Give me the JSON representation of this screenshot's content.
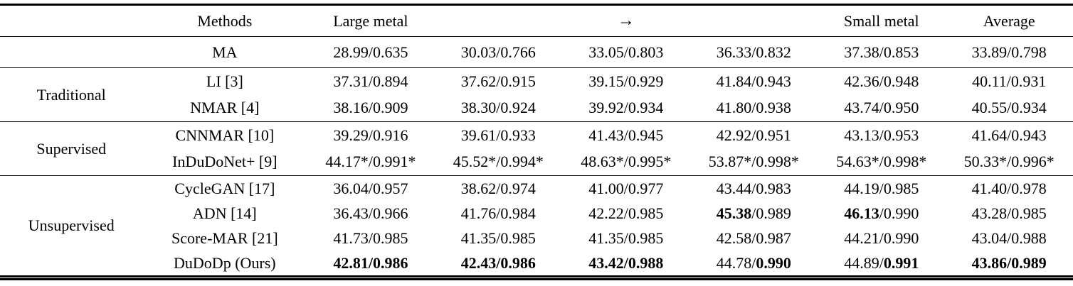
{
  "colors": {
    "text": "#000000",
    "background": "#ffffff",
    "rule": "#000000"
  },
  "table": {
    "columns": [
      "",
      "Methods",
      "Large metal",
      "",
      "→",
      "",
      "Small metal",
      "Average"
    ],
    "value_format": "PSNR/SSIM",
    "sections": [
      {
        "category": "",
        "rows": [
          {
            "method": "MA",
            "cells": [
              {
                "psnr": "28.99",
                "ssim": "0.635"
              },
              {
                "psnr": "30.03",
                "ssim": "0.766"
              },
              {
                "psnr": "33.05",
                "ssim": "0.803"
              },
              {
                "psnr": "36.33",
                "ssim": "0.832"
              },
              {
                "psnr": "37.38",
                "ssim": "0.853"
              },
              {
                "psnr": "33.89",
                "ssim": "0.798"
              }
            ]
          }
        ]
      },
      {
        "category": "Traditional",
        "rows": [
          {
            "method": "LI [3]",
            "cells": [
              {
                "psnr": "37.31",
                "ssim": "0.894"
              },
              {
                "psnr": "37.62",
                "ssim": "0.915"
              },
              {
                "psnr": "39.15",
                "ssim": "0.929"
              },
              {
                "psnr": "41.84",
                "ssim": "0.943"
              },
              {
                "psnr": "42.36",
                "ssim": "0.948"
              },
              {
                "psnr": "40.11",
                "ssim": "0.931"
              }
            ]
          },
          {
            "method": "NMAR [4]",
            "cells": [
              {
                "psnr": "38.16",
                "ssim": "0.909"
              },
              {
                "psnr": "38.30",
                "ssim": "0.924"
              },
              {
                "psnr": "39.92",
                "ssim": "0.934"
              },
              {
                "psnr": "41.80",
                "ssim": "0.938"
              },
              {
                "psnr": "43.74",
                "ssim": "0.950"
              },
              {
                "psnr": "40.55",
                "ssim": "0.934"
              }
            ]
          }
        ]
      },
      {
        "category": "Supervised",
        "rows": [
          {
            "method": "CNNMAR [10]",
            "cells": [
              {
                "psnr": "39.29",
                "ssim": "0.916"
              },
              {
                "psnr": "39.61",
                "ssim": "0.933"
              },
              {
                "psnr": "41.43",
                "ssim": "0.945"
              },
              {
                "psnr": "42.92",
                "ssim": "0.951"
              },
              {
                "psnr": "43.13",
                "ssim": "0.953"
              },
              {
                "psnr": "41.64",
                "ssim": "0.943"
              }
            ]
          },
          {
            "method": "InDuDoNet+ [9]",
            "cells": [
              {
                "psnr": "44.17*",
                "ssim": "0.991*"
              },
              {
                "psnr": "45.52*",
                "ssim": "0.994*"
              },
              {
                "psnr": "48.63*",
                "ssim": "0.995*"
              },
              {
                "psnr": "53.87*",
                "ssim": "0.998*"
              },
              {
                "psnr": "54.63*",
                "ssim": "0.998*"
              },
              {
                "psnr": "50.33*",
                "ssim": "0.996*"
              }
            ]
          }
        ]
      },
      {
        "category": "Unsupervised",
        "rows": [
          {
            "method": "CycleGAN [17]",
            "cells": [
              {
                "psnr": "36.04",
                "ssim": "0.957"
              },
              {
                "psnr": "38.62",
                "ssim": "0.974"
              },
              {
                "psnr": "41.00",
                "ssim": "0.977"
              },
              {
                "psnr": "43.44",
                "ssim": "0.983"
              },
              {
                "psnr": "44.19",
                "ssim": "0.985"
              },
              {
                "psnr": "41.40",
                "ssim": "0.978"
              }
            ]
          },
          {
            "method": "ADN [14]",
            "cells": [
              {
                "psnr": "36.43",
                "ssim": "0.966"
              },
              {
                "psnr": "41.76",
                "ssim": "0.984"
              },
              {
                "psnr": "42.22",
                "ssim": "0.985"
              },
              {
                "psnr": "45.38",
                "ssim": "0.989",
                "bold": "psnr"
              },
              {
                "psnr": "46.13",
                "ssim": "0.990",
                "bold": "psnr"
              },
              {
                "psnr": "43.28",
                "ssim": "0.985"
              }
            ]
          },
          {
            "method": "Score-MAR [21]",
            "cells": [
              {
                "psnr": "41.73",
                "ssim": "0.985"
              },
              {
                "psnr": "41.35",
                "ssim": "0.985"
              },
              {
                "psnr": "41.35",
                "ssim": "0.985"
              },
              {
                "psnr": "42.58",
                "ssim": "0.987"
              },
              {
                "psnr": "44.21",
                "ssim": "0.990"
              },
              {
                "psnr": "43.04",
                "ssim": "0.988"
              }
            ]
          },
          {
            "method": "DuDoDp (Ours)",
            "cells": [
              {
                "psnr": "42.81",
                "ssim": "0.986",
                "bold": "all"
              },
              {
                "psnr": "42.43",
                "ssim": "0.986",
                "bold": "all"
              },
              {
                "psnr": "43.42",
                "ssim": "0.988",
                "bold": "all"
              },
              {
                "psnr": "44.78",
                "ssim": "0.990",
                "bold": "ssim"
              },
              {
                "psnr": "44.89",
                "ssim": "0.991",
                "bold": "ssim"
              },
              {
                "psnr": "43.86",
                "ssim": "0.989",
                "bold": "all"
              }
            ]
          }
        ]
      }
    ]
  }
}
